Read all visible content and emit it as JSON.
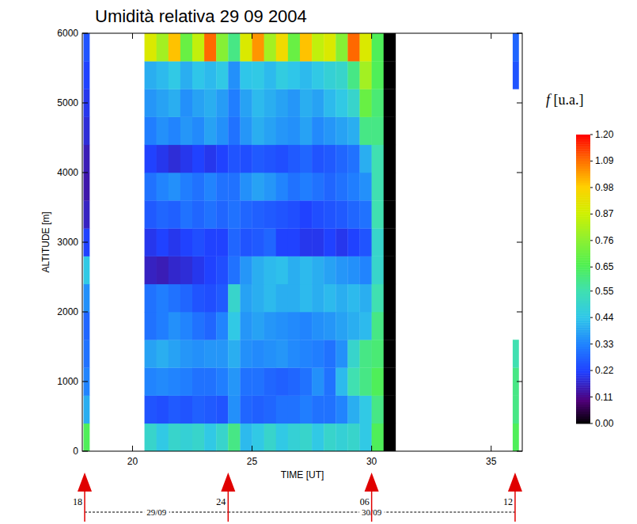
{
  "chart_data": {
    "type": "heatmap",
    "title": "Umidità relativa 29 09 2004",
    "x_label": "TIME [UT]",
    "y_label": "ALTITUDE [m]",
    "xlim": [
      17.9,
      36.3
    ],
    "ylim": [
      0,
      6000
    ],
    "xticks": [
      20,
      25,
      30,
      35
    ],
    "yticks": [
      0,
      1000,
      2000,
      3000,
      4000,
      5000,
      6000
    ],
    "x_edges": [
      17.95,
      18.2,
      20.5,
      21,
      21.5,
      22,
      22.5,
      23,
      23.5,
      24,
      24.5,
      25,
      25.5,
      26,
      26.5,
      27,
      27.5,
      28,
      28.5,
      29,
      29.5,
      30,
      30.5,
      31,
      35.9,
      36.15
    ],
    "y_edges": [
      0,
      400,
      800,
      1200,
      1600,
      2000,
      2400,
      2800,
      3200,
      3600,
      4000,
      4400,
      4800,
      5200,
      5600,
      6000
    ],
    "cells": [
      [
        0.65,
        null,
        0.5,
        0.45,
        0.5,
        0.48,
        0.5,
        0.45,
        0.5,
        0.6,
        0.42,
        0.45,
        0.5,
        0.45,
        0.48,
        0.5,
        0.45,
        0.5,
        0.48,
        0.5,
        0.45,
        0.65,
        0,
        null,
        0.65
      ],
      [
        0.4,
        null,
        0.25,
        0.24,
        0.26,
        0.25,
        0.27,
        0.26,
        0.25,
        0.35,
        0.28,
        0.27,
        0.28,
        0.3,
        0.3,
        0.32,
        0.3,
        0.3,
        0.33,
        0.4,
        0.45,
        0.6,
        0,
        null,
        0.6
      ],
      [
        0.33,
        null,
        0.33,
        0.34,
        0.33,
        0.32,
        0.3,
        0.3,
        0.32,
        0.36,
        0.3,
        0.3,
        0.28,
        0.27,
        0.28,
        0.3,
        0.35,
        0.3,
        0.42,
        0.55,
        0.6,
        0.65,
        0,
        null,
        0.6
      ],
      [
        0.3,
        null,
        0.38,
        0.4,
        0.38,
        0.36,
        0.35,
        0.36,
        0.36,
        0.4,
        0.35,
        0.34,
        0.35,
        0.36,
        0.34,
        0.33,
        0.32,
        0.3,
        0.35,
        0.5,
        0.6,
        0.62,
        0,
        null,
        0.55
      ],
      [
        0.28,
        null,
        0.3,
        0.32,
        0.35,
        0.33,
        0.3,
        0.28,
        0.33,
        0.45,
        0.36,
        0.38,
        0.36,
        0.35,
        0.34,
        0.33,
        0.35,
        0.36,
        0.38,
        0.4,
        0.42,
        0.6,
        0,
        null,
        null
      ],
      [
        0.35,
        null,
        0.3,
        0.32,
        0.3,
        0.28,
        0.25,
        0.24,
        0.26,
        0.5,
        0.38,
        0.4,
        0.42,
        0.4,
        0.4,
        0.42,
        0.4,
        0.42,
        0.4,
        0.42,
        0.4,
        0.55,
        0,
        null,
        null
      ],
      [
        0.45,
        null,
        0.16,
        0.15,
        0.17,
        0.18,
        0.2,
        0.22,
        0.24,
        0.3,
        0.36,
        0.4,
        0.42,
        0.43,
        0.4,
        0.42,
        0.4,
        0.38,
        0.36,
        0.35,
        0.33,
        0.5,
        0,
        null,
        null
      ],
      [
        0.22,
        null,
        0.2,
        0.22,
        0.2,
        0.22,
        0.24,
        0.22,
        0.22,
        0.28,
        0.25,
        0.26,
        0.28,
        0.22,
        0.22,
        0.2,
        0.2,
        0.22,
        0.2,
        0.22,
        0.25,
        0.5,
        0,
        null,
        null
      ],
      [
        0.16,
        null,
        0.26,
        0.28,
        0.27,
        0.3,
        0.28,
        0.3,
        0.28,
        0.3,
        0.28,
        0.27,
        0.26,
        0.25,
        0.24,
        0.22,
        0.24,
        0.25,
        0.26,
        0.28,
        0.3,
        0.55,
        0,
        null,
        null
      ],
      [
        0.14,
        null,
        0.3,
        0.33,
        0.35,
        0.32,
        0.3,
        0.33,
        0.3,
        0.3,
        0.35,
        0.38,
        0.36,
        0.33,
        0.3,
        0.32,
        0.3,
        0.28,
        0.3,
        0.32,
        0.35,
        0.55,
        0,
        null,
        null
      ],
      [
        0.15,
        null,
        0.22,
        0.2,
        0.18,
        0.2,
        0.22,
        0.2,
        0.22,
        0.25,
        0.24,
        0.26,
        0.25,
        0.24,
        0.26,
        0.28,
        0.25,
        0.26,
        0.28,
        0.3,
        0.4,
        0.55,
        0,
        null,
        null
      ],
      [
        0.18,
        null,
        0.32,
        0.35,
        0.33,
        0.36,
        0.34,
        0.38,
        0.35,
        0.3,
        0.36,
        0.4,
        0.38,
        0.36,
        0.35,
        0.38,
        0.34,
        0.36,
        0.38,
        0.4,
        0.6,
        0.6,
        0,
        null,
        null
      ],
      [
        0.2,
        null,
        0.36,
        0.38,
        0.4,
        0.35,
        0.38,
        0.4,
        0.37,
        0.32,
        0.38,
        0.42,
        0.4,
        0.38,
        0.36,
        0.4,
        0.38,
        0.42,
        0.45,
        0.5,
        0.7,
        0.62,
        0,
        null,
        null
      ],
      [
        0.22,
        null,
        0.4,
        0.42,
        0.45,
        0.4,
        0.44,
        0.42,
        0.45,
        0.35,
        0.44,
        0.45,
        0.42,
        0.46,
        0.44,
        0.42,
        0.45,
        0.48,
        0.5,
        0.6,
        0.8,
        0.65,
        0,
        null,
        0.25
      ],
      [
        0.25,
        null,
        0.9,
        0.8,
        1.0,
        0.7,
        0.85,
        1.1,
        0.75,
        0.6,
        0.9,
        1.05,
        0.8,
        0.95,
        0.7,
        1.0,
        0.85,
        0.9,
        0.75,
        1.1,
        0.9,
        0.65,
        0,
        null,
        0.28
      ]
    ],
    "colorbar": {
      "label": "f [u.a.]",
      "range": [
        0,
        1.2
      ],
      "ticks": [
        {
          "value": 0,
          "label": "0.00"
        },
        0.11,
        0.22,
        0.33,
        0.44,
        0.55,
        0.65,
        0.76,
        0.87,
        0.98,
        1.09,
        {
          "value": 1.2,
          "label": "1.20"
        }
      ]
    },
    "markers": [
      {
        "x": 18,
        "label": "18"
      },
      {
        "x": 24,
        "label": "24"
      },
      {
        "x": 30,
        "label": "06"
      },
      {
        "x": 36,
        "label": "12"
      }
    ],
    "dates": [
      {
        "label": "29/09",
        "from": 18,
        "to": 24
      },
      {
        "label": "30/09",
        "from": 24,
        "to": 36
      }
    ]
  }
}
